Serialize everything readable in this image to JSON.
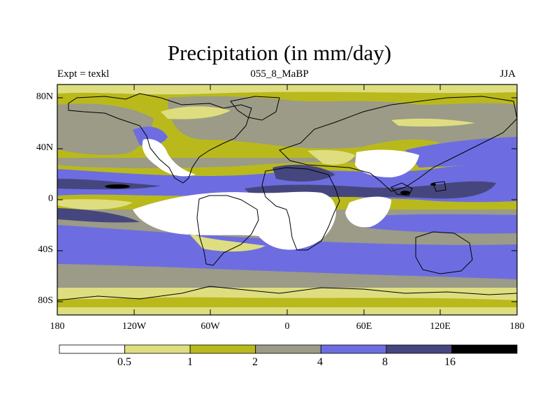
{
  "title": "Precipitation (in mm/day)",
  "subtitle_left": "Expt = texkl",
  "subtitle_center": "055_8_MaBP",
  "subtitle_right": "JJA",
  "y_ticks": [
    "80N",
    "40N",
    "0",
    "40S",
    "80S"
  ],
  "x_ticks": [
    "180",
    "120W",
    "60W",
    "0",
    "60E",
    "120E",
    "180"
  ],
  "colorbar": {
    "levels": [
      "0.5",
      "1",
      "2",
      "4",
      "8",
      "16"
    ],
    "colors": [
      "#ffffff",
      "#dede80",
      "#b9b91c",
      "#9b9b87",
      "#6d6de1",
      "#46467e",
      "#000000"
    ]
  },
  "chart_data": {
    "type": "heatmap",
    "title": "Precipitation (in mm/day)",
    "units": "mm/day",
    "levels": [
      0.5,
      1,
      2,
      4,
      8,
      16
    ],
    "xlim": [
      -180,
      180
    ],
    "ylim": [
      -90,
      90
    ]
  }
}
